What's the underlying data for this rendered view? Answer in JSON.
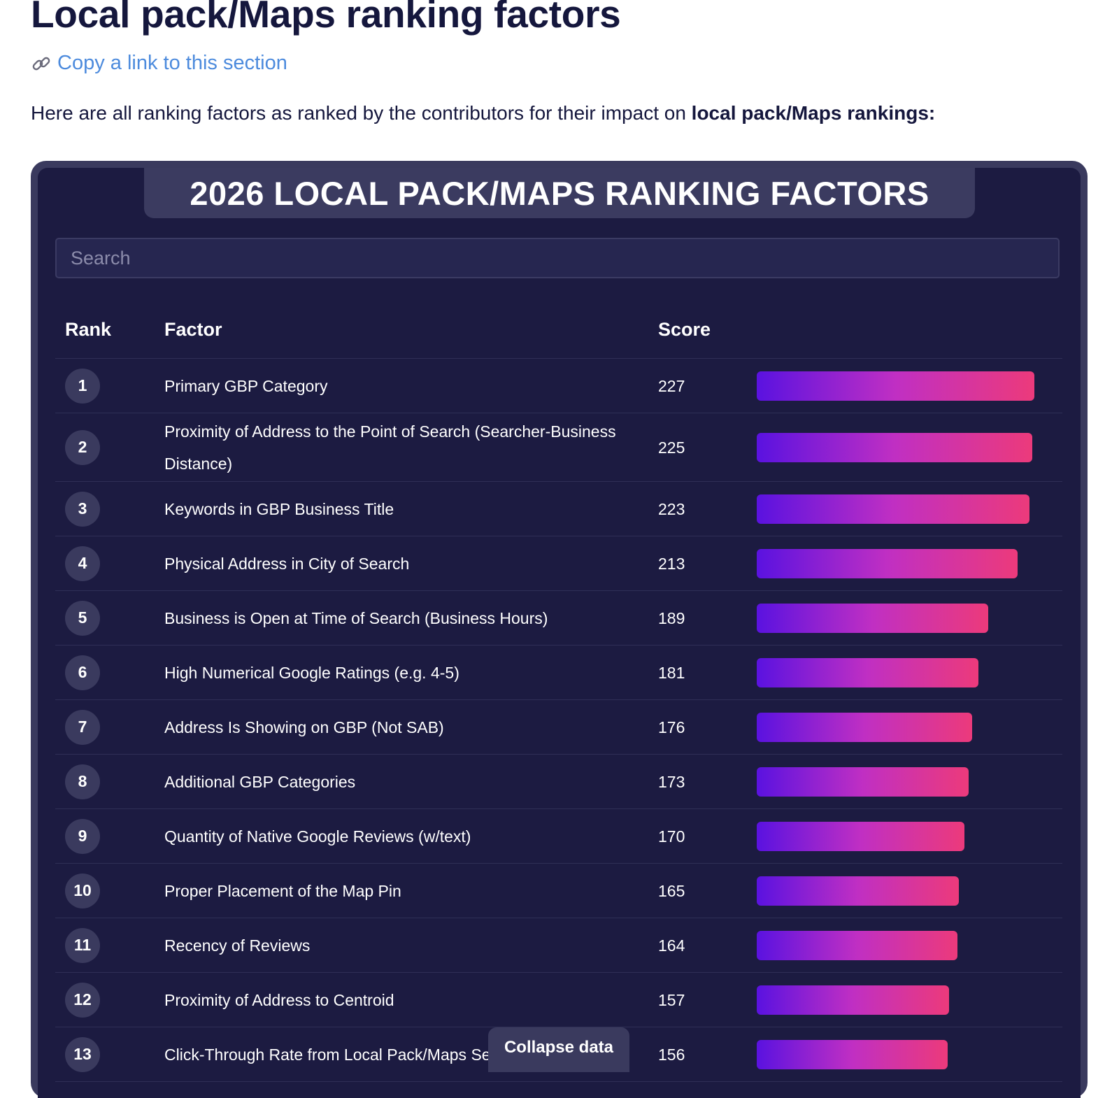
{
  "header": {
    "title": "Local pack/Maps ranking factors",
    "copy_link_label": "Copy a link to this section",
    "intro_prefix": "Here are all ranking factors as ranked by the contributors for their impact on ",
    "intro_bold": "local pack/Maps rankings:"
  },
  "card": {
    "title": "2026 LOCAL PACK/MAPS RANKING FACTORS",
    "search_placeholder": "Search",
    "columns": {
      "rank": "Rank",
      "factor": "Factor",
      "score": "Score"
    },
    "collapse_label": "Collapse data"
  },
  "colors": {
    "bar_start": "#5a12e0",
    "bar_mid": "#c02fc3",
    "bar_end": "#ec3a7b",
    "card_bg": "#1c1b41",
    "heading": "#15173d",
    "link": "#4d8bdd"
  },
  "icons": {
    "copy_link": "link-icon"
  },
  "rows": [
    {
      "rank": "1",
      "factor": "Primary GBP Category",
      "score": 227
    },
    {
      "rank": "2",
      "factor": "Proximity of Address to the Point of Search (Searcher-Business Distance)",
      "score": 225
    },
    {
      "rank": "3",
      "factor": "Keywords in GBP Business Title",
      "score": 223
    },
    {
      "rank": "4",
      "factor": "Physical Address in City of Search",
      "score": 213
    },
    {
      "rank": "5",
      "factor": "Business is Open at Time of Search (Business Hours)",
      "score": 189
    },
    {
      "rank": "6",
      "factor": "High Numerical Google Ratings (e.g. 4-5)",
      "score": 181
    },
    {
      "rank": "7",
      "factor": "Address Is Showing on GBP (Not SAB)",
      "score": 176
    },
    {
      "rank": "8",
      "factor": "Additional GBP Categories",
      "score": 173
    },
    {
      "rank": "9",
      "factor": "Quantity of Native Google Reviews (w/text)",
      "score": 170
    },
    {
      "rank": "10",
      "factor": "Proper Placement of the Map Pin",
      "score": 165
    },
    {
      "rank": "11",
      "factor": "Recency of Reviews",
      "score": 164
    },
    {
      "rank": "12",
      "factor": "Proximity of Address to Centroid",
      "score": 157
    },
    {
      "rank": "13",
      "factor": "Click-Through Rate from Local Pack/Maps Search Results",
      "score": 156
    }
  ]
}
